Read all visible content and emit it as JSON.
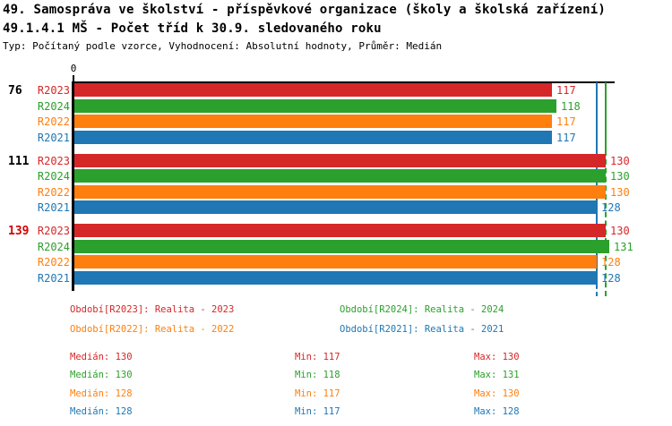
{
  "header": {
    "title_line1": "49. Samospráva ve školství - příspěvkové organizace (školy a školská zařízení)",
    "title_line2": "49.1.4.1 MŠ - Počet tříd k 30.9. sledovaného roku",
    "meta": "Typ: Počítaný podle vzorce, Vyhodnocení: Absolutní hodnoty, Průměr: Medián"
  },
  "palette": {
    "R2023": "#d62728",
    "R2024": "#2ca02c",
    "R2022": "#ff7f0e",
    "R2021": "#1f77b4",
    "highlight": "#d40000",
    "axis": "#000000"
  },
  "chart_data": {
    "type": "bar",
    "orientation": "horizontal",
    "axis_origin_label": "0",
    "value_range": [
      0,
      131
    ],
    "grid": false,
    "series_order": [
      "R2023",
      "R2024",
      "R2022",
      "R2021"
    ],
    "groups": [
      {
        "label": "76",
        "highlight": false,
        "bars": [
          {
            "series": "R2023",
            "value": 117
          },
          {
            "series": "R2024",
            "value": 118
          },
          {
            "series": "R2022",
            "value": 117
          },
          {
            "series": "R2021",
            "value": 117
          }
        ]
      },
      {
        "label": "111",
        "highlight": false,
        "bars": [
          {
            "series": "R2023",
            "value": 130
          },
          {
            "series": "R2024",
            "value": 130
          },
          {
            "series": "R2022",
            "value": 130
          },
          {
            "series": "R2021",
            "value": 128
          }
        ]
      },
      {
        "label": "139",
        "highlight": true,
        "bars": [
          {
            "series": "R2023",
            "value": 130
          },
          {
            "series": "R2024",
            "value": 131
          },
          {
            "series": "R2022",
            "value": 128
          },
          {
            "series": "R2021",
            "value": 128
          }
        ]
      }
    ],
    "reference_lines": [
      {
        "value": 128,
        "series": "R2021",
        "style": "solid"
      },
      {
        "value": 130,
        "series": "R2024",
        "style": "dashed"
      }
    ]
  },
  "legend": [
    {
      "series": "R2023",
      "label": "Období[R2023]: Realita - 2023"
    },
    {
      "series": "R2024",
      "label": "Období[R2024]: Realita - 2024"
    },
    {
      "series": "R2022",
      "label": "Období[R2022]: Realita - 2022"
    },
    {
      "series": "R2021",
      "label": "Období[R2021]: Realita - 2021"
    }
  ],
  "stats": [
    {
      "series": "R2023",
      "median": "Medián: 130",
      "min": "Min: 117",
      "max": "Max: 130"
    },
    {
      "series": "R2024",
      "median": "Medián: 130",
      "min": "Min: 118",
      "max": "Max: 131"
    },
    {
      "series": "R2022",
      "median": "Medián: 128",
      "min": "Min: 117",
      "max": "Max: 130"
    },
    {
      "series": "R2021",
      "median": "Medián: 128",
      "min": "Min: 117",
      "max": "Max: 128"
    }
  ]
}
